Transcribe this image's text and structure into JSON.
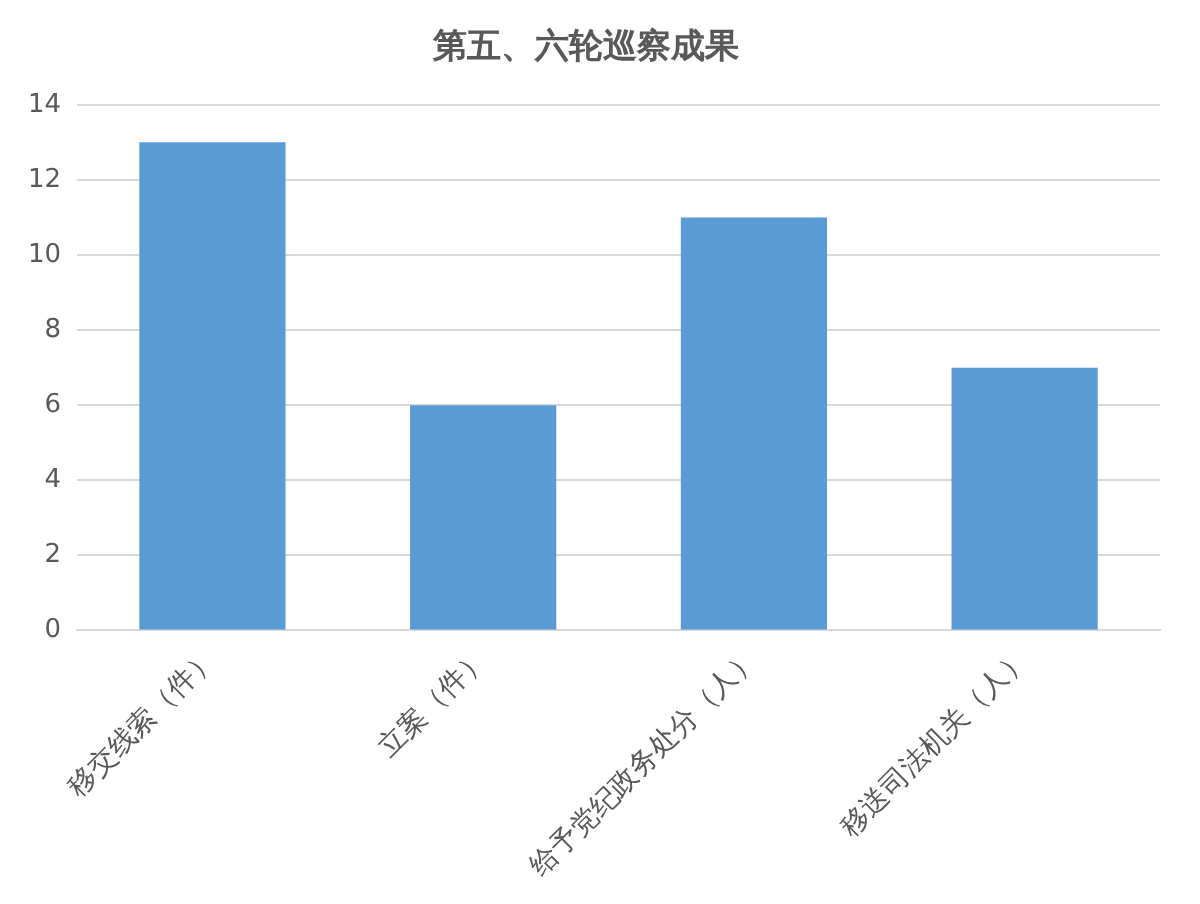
{
  "chart_data": {
    "type": "bar",
    "title": "第五、六轮巡察成果",
    "categories": [
      "移交线索（件）",
      "立案（件）",
      "给予党纪政务处分（人）",
      "移送司法机关（人）"
    ],
    "values": [
      13,
      6,
      11,
      7
    ],
    "color": "#5b9bd5",
    "ylim": [
      0,
      14
    ],
    "yticks": [
      0,
      2,
      4,
      6,
      8,
      10,
      12,
      14
    ],
    "grid": "y"
  }
}
